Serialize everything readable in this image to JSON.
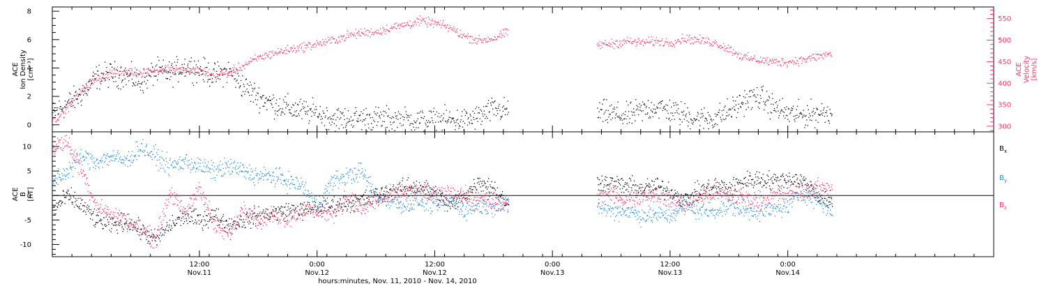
{
  "chart_data": [
    {
      "type": "scatter",
      "panel": "top",
      "title": "",
      "xlabel": "",
      "left_axis": {
        "label_lines": [
          "ACE",
          "Ion Density",
          "[cm⁻³]"
        ],
        "ylim": [
          -0.5,
          8.3
        ],
        "ticks": [
          0,
          2,
          4,
          6,
          8
        ],
        "tick_labels": [
          "0",
          "2",
          "4",
          "6",
          "8"
        ]
      },
      "right_axis": {
        "label_lines": [
          "ACE",
          "Velocity",
          "[km/s]"
        ],
        "ylim": [
          287,
          577
        ],
        "ticks": [
          300,
          350,
          400,
          450,
          500,
          550
        ],
        "tick_labels": [
          "300",
          "350",
          "400",
          "450",
          "500",
          "550"
        ],
        "color": "#ff3366"
      },
      "series": [
        {
          "key": "density",
          "color": "#000000",
          "axis": "left",
          "values": [
            [
              0,
              0.8
            ],
            [
              6,
              1.5
            ],
            [
              12,
              2.2
            ],
            [
              18,
              3.4
            ],
            [
              24,
              3.6
            ],
            [
              30,
              3.5
            ],
            [
              36,
              3.0
            ],
            [
              42,
              3.8
            ],
            [
              48,
              3.6
            ],
            [
              54,
              4.2
            ],
            [
              60,
              3.9
            ],
            [
              66,
              3.5
            ],
            [
              72,
              3.8
            ],
            [
              78,
              2.7
            ],
            [
              84,
              2.0
            ],
            [
              90,
              1.5
            ],
            [
              96,
              1.2
            ],
            [
              102,
              1.0
            ],
            [
              108,
              0.8
            ],
            [
              114,
              0.5
            ],
            [
              120,
              0.4
            ],
            [
              126,
              0.5
            ],
            [
              132,
              0.45
            ],
            [
              138,
              0.4
            ],
            [
              144,
              0.35
            ],
            [
              150,
              0.3
            ],
            [
              156,
              0.3
            ],
            [
              162,
              0.35
            ],
            [
              168,
              0.3
            ],
            [
              174,
              0.6
            ],
            [
              180,
              1.1
            ],
            [
              186,
              1.0
            ],
            [
              222,
              0.9
            ],
            [
              228,
              0.8
            ],
            [
              234,
              0.6
            ],
            [
              240,
              1.0
            ],
            [
              246,
              1.3
            ],
            [
              252,
              1.0
            ],
            [
              258,
              0.7
            ],
            [
              264,
              0.4
            ],
            [
              270,
              0.5
            ],
            [
              276,
              1.0
            ],
            [
              282,
              1.7
            ],
            [
              288,
              2.0
            ],
            [
              294,
              1.3
            ],
            [
              300,
              0.8
            ],
            [
              306,
              0.7
            ],
            [
              318,
              1.0
            ]
          ]
        },
        {
          "key": "velocity",
          "color": "#ff3366",
          "axis": "right",
          "values": [
            [
              0,
              310
            ],
            [
              6,
              345
            ],
            [
              12,
              385
            ],
            [
              18,
              410
            ],
            [
              24,
              425
            ],
            [
              30,
              428
            ],
            [
              36,
              425
            ],
            [
              42,
              430
            ],
            [
              48,
              435
            ],
            [
              54,
              430
            ],
            [
              60,
              430
            ],
            [
              66,
              420
            ],
            [
              72,
              425
            ],
            [
              78,
              442
            ],
            [
              84,
              460
            ],
            [
              90,
              470
            ],
            [
              96,
              478
            ],
            [
              102,
              485
            ],
            [
              108,
              492
            ],
            [
              114,
              500
            ],
            [
              120,
              510
            ],
            [
              126,
              518
            ],
            [
              132,
              520
            ],
            [
              138,
              530
            ],
            [
              144,
              537
            ],
            [
              150,
              545
            ],
            [
              156,
              540
            ],
            [
              162,
              530
            ],
            [
              168,
              510
            ],
            [
              174,
              500
            ],
            [
              180,
              505
            ],
            [
              186,
              520
            ],
            [
              222,
              490
            ],
            [
              228,
              492
            ],
            [
              234,
              498
            ],
            [
              240,
              495
            ],
            [
              246,
              498
            ],
            [
              252,
              495
            ],
            [
              258,
              505
            ],
            [
              264,
              500
            ],
            [
              270,
              495
            ],
            [
              276,
              480
            ],
            [
              282,
              460
            ],
            [
              288,
              455
            ],
            [
              294,
              450
            ],
            [
              300,
              450
            ],
            [
              306,
              455
            ],
            [
              318,
              470
            ]
          ]
        }
      ]
    },
    {
      "type": "scatter",
      "panel": "bottom",
      "title": "",
      "xlabel": "hours:minutes, Nov. 11, 2010 - Nov. 14, 2010",
      "left_axis": {
        "label_lines": [
          "ACE",
          "B",
          "[nT]"
        ],
        "ylim": [
          -12.5,
          13
        ],
        "ticks": [
          -10,
          -5,
          0,
          5,
          10
        ],
        "tick_labels": [
          "-10",
          "-5",
          "0",
          "5",
          "10"
        ]
      },
      "zero_line": 0,
      "legend": {
        "placement": "right",
        "items": [
          {
            "name": "B",
            "sub": "x",
            "color": "#000000"
          },
          {
            "name": "B",
            "sub": "y",
            "color": "#1e88e5"
          },
          {
            "name": "B",
            "sub": "z",
            "color": "#ff3366"
          }
        ]
      },
      "series": [
        {
          "key": "bx",
          "color": "#000000",
          "values": [
            [
              0,
              -3
            ],
            [
              6,
              0
            ],
            [
              12,
              -2
            ],
            [
              18,
              -5
            ],
            [
              24,
              -6
            ],
            [
              30,
              -5
            ],
            [
              36,
              -7
            ],
            [
              42,
              -9
            ],
            [
              48,
              -6
            ],
            [
              54,
              -4
            ],
            [
              60,
              -5
            ],
            [
              66,
              -4
            ],
            [
              72,
              -6
            ],
            [
              78,
              -5
            ],
            [
              84,
              -4
            ],
            [
              90,
              -3.5
            ],
            [
              96,
              -3
            ],
            [
              102,
              -3
            ],
            [
              108,
              -2.5
            ],
            [
              114,
              -2
            ],
            [
              120,
              -1.5
            ],
            [
              126,
              -1
            ],
            [
              132,
              0
            ],
            [
              138,
              1
            ],
            [
              144,
              1.5
            ],
            [
              150,
              2
            ],
            [
              156,
              0.5
            ],
            [
              162,
              -2
            ],
            [
              168,
              0
            ],
            [
              174,
              3
            ],
            [
              180,
              1.5
            ],
            [
              186,
              -2
            ],
            [
              222,
              3
            ],
            [
              228,
              2.5
            ],
            [
              234,
              2
            ],
            [
              240,
              1.5
            ],
            [
              246,
              2
            ],
            [
              252,
              1
            ],
            [
              258,
              -1
            ],
            [
              264,
              1
            ],
            [
              270,
              2
            ],
            [
              276,
              1.5
            ],
            [
              282,
              3
            ],
            [
              288,
              3.5
            ],
            [
              294,
              3
            ],
            [
              300,
              3.5
            ],
            [
              306,
              3
            ],
            [
              318,
              -2
            ]
          ]
        },
        {
          "key": "by",
          "color": "#1e88e5",
          "values": [
            [
              0,
              3
            ],
            [
              6,
              5
            ],
            [
              12,
              8
            ],
            [
              18,
              7
            ],
            [
              24,
              8
            ],
            [
              30,
              7
            ],
            [
              36,
              10
            ],
            [
              42,
              8
            ],
            [
              48,
              6
            ],
            [
              54,
              7
            ],
            [
              60,
              6
            ],
            [
              66,
              5
            ],
            [
              72,
              6
            ],
            [
              78,
              5
            ],
            [
              84,
              4
            ],
            [
              90,
              4
            ],
            [
              96,
              3
            ],
            [
              102,
              2
            ],
            [
              108,
              -2
            ],
            [
              114,
              3
            ],
            [
              120,
              4
            ],
            [
              126,
              5
            ],
            [
              132,
              0
            ],
            [
              138,
              -1
            ],
            [
              144,
              -2
            ],
            [
              150,
              -1
            ],
            [
              156,
              -2
            ],
            [
              162,
              -1
            ],
            [
              168,
              -3
            ],
            [
              174,
              -2
            ],
            [
              180,
              -2
            ],
            [
              186,
              -2
            ],
            [
              222,
              -2
            ],
            [
              228,
              -3
            ],
            [
              234,
              -3
            ],
            [
              240,
              -4
            ],
            [
              246,
              -4
            ],
            [
              252,
              -4
            ],
            [
              258,
              -2
            ],
            [
              264,
              -3
            ],
            [
              270,
              -3
            ],
            [
              276,
              -2
            ],
            [
              282,
              -3
            ],
            [
              288,
              -3
            ],
            [
              294,
              -3
            ],
            [
              300,
              -2
            ],
            [
              306,
              1
            ],
            [
              318,
              -3
            ]
          ]
        },
        {
          "key": "bz",
          "color": "#ff3366",
          "values": [
            [
              0,
              10
            ],
            [
              6,
              11
            ],
            [
              12,
              5
            ],
            [
              18,
              -2
            ],
            [
              24,
              -4
            ],
            [
              30,
              -5
            ],
            [
              36,
              -7
            ],
            [
              42,
              -9
            ],
            [
              48,
              1
            ],
            [
              54,
              -4
            ],
            [
              60,
              2
            ],
            [
              66,
              -6
            ],
            [
              72,
              -8
            ],
            [
              78,
              -2
            ],
            [
              84,
              -5
            ],
            [
              90,
              -4
            ],
            [
              96,
              -4.5
            ],
            [
              102,
              -3
            ],
            [
              108,
              -3
            ],
            [
              114,
              -4
            ],
            [
              120,
              0
            ],
            [
              126,
              -3
            ],
            [
              132,
              -1
            ],
            [
              138,
              0
            ],
            [
              144,
              1
            ],
            [
              150,
              1
            ],
            [
              156,
              0
            ],
            [
              162,
              1
            ],
            [
              168,
              0
            ],
            [
              174,
              -1
            ],
            [
              180,
              -1.5
            ],
            [
              186,
              -2
            ],
            [
              222,
              0
            ],
            [
              228,
              0.5
            ],
            [
              234,
              -1
            ],
            [
              240,
              0
            ],
            [
              246,
              0.5
            ],
            [
              252,
              -1
            ],
            [
              258,
              -2
            ],
            [
              264,
              0
            ],
            [
              270,
              0.5
            ],
            [
              276,
              0
            ],
            [
              282,
              -0.5
            ],
            [
              288,
              -1
            ],
            [
              294,
              0
            ],
            [
              300,
              0.5
            ],
            [
              306,
              1
            ],
            [
              318,
              2
            ]
          ]
        }
      ]
    }
  ],
  "time_axis": {
    "range_hours": [
      -3,
      93
    ],
    "ticks": [
      {
        "hour": 12,
        "time": "12:00",
        "date": "Nov.11"
      },
      {
        "hour": 24,
        "time": "0:00",
        "date": "Nov.12"
      },
      {
        "hour": 36,
        "time": "12:00",
        "date": "Nov.12"
      },
      {
        "hour": 48,
        "time": "0:00",
        "date": "Nov.13"
      },
      {
        "hour": 60,
        "time": "12:00",
        "date": "Nov.13"
      },
      {
        "hour": 72,
        "time": "0:00",
        "date": "Nov.14"
      }
    ],
    "minor_tick_hours": 2
  },
  "colors": {
    "density": "#000000",
    "velocity": "#ff3366",
    "bx": "#000000",
    "by": "#1e88e5",
    "bz": "#ff3366",
    "frame": "#000000"
  }
}
